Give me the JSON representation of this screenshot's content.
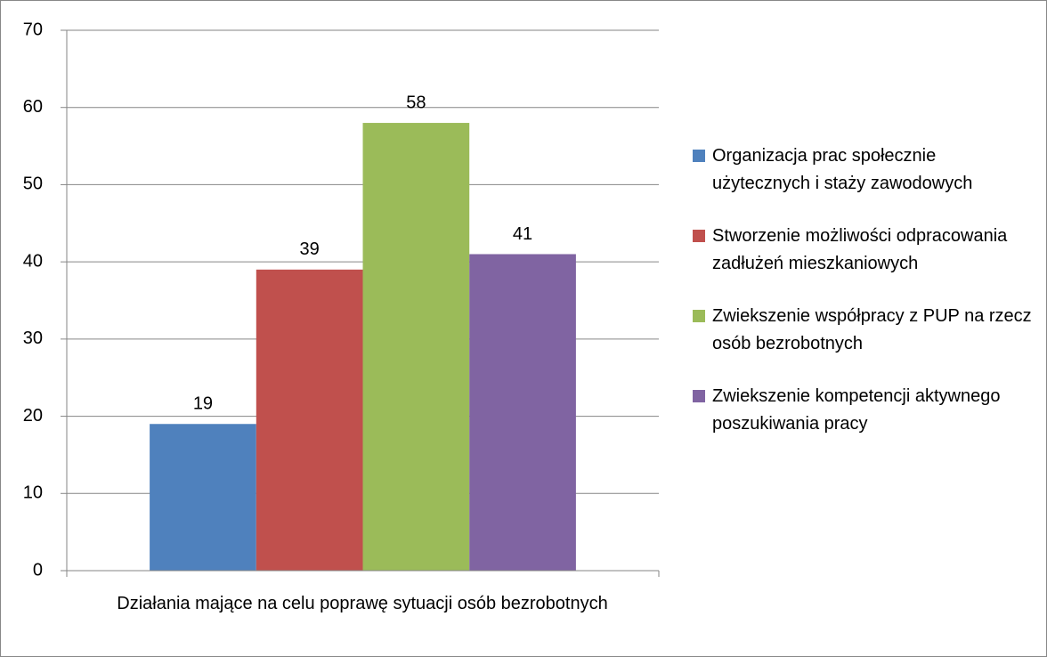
{
  "chart_data": {
    "type": "bar",
    "categories": [
      "Działania mające na celu poprawę sytuacji osób bezrobotnych"
    ],
    "series": [
      {
        "name": "Organizacja prac społecznie użytecznych i staży zawodowych",
        "color": "#4f81bd",
        "values": [
          19
        ]
      },
      {
        "name": "Stworzenie możliwości odpracowania zadłużeń mieszkaniowych",
        "color": "#c0504d",
        "values": [
          39
        ]
      },
      {
        "name": "Zwiekszenie współpracy z PUP na rzecz osób bezrobotnych",
        "color": "#9bbb59",
        "values": [
          58
        ]
      },
      {
        "name": "Zwiekszenie kompetencji aktywnego poszukiwania pracy",
        "color": "#8064a2",
        "values": [
          41
        ]
      }
    ],
    "ylim": [
      0,
      70
    ],
    "yticks": [
      0,
      10,
      20,
      30,
      40,
      50,
      60,
      70
    ],
    "grid": true,
    "legend": "right"
  }
}
